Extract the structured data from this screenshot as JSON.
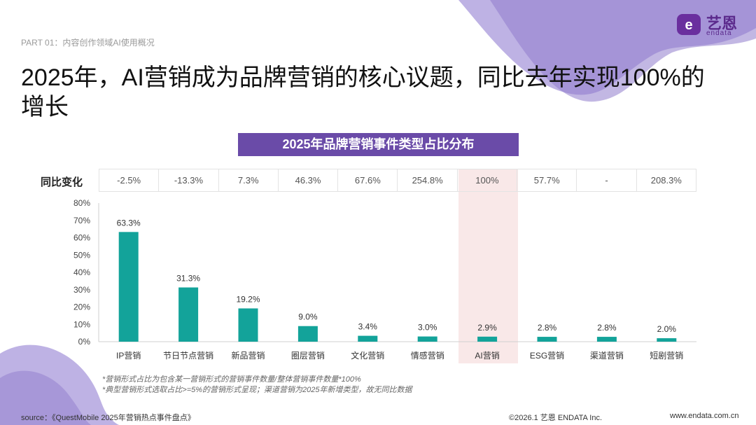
{
  "header": {
    "section_tag": "PART 01：内容创作领域AI使用概况",
    "logo_cn": "艺恩",
    "logo_en": "endata"
  },
  "title": "2025年，AI营销成为品牌营销的核心议题，同比去年实现100%的增长",
  "yoy": {
    "label": "同比变化",
    "values": [
      "-2.5%",
      "-13.3%",
      "7.3%",
      "46.3%",
      "67.6%",
      "254.8%",
      "100%",
      "57.7%",
      "-",
      "208.3%"
    ]
  },
  "chart_data": {
    "type": "bar",
    "title": "2025年品牌营销事件类型占比分布",
    "categories": [
      "IP营销",
      "节日节点营销",
      "新品营销",
      "圈层营销",
      "文化营销",
      "情感营销",
      "AI营销",
      "ESG营销",
      "渠道营销",
      "短剧营销"
    ],
    "values": [
      63.3,
      31.3,
      19.2,
      9.0,
      3.4,
      3.0,
      2.9,
      2.8,
      2.8,
      2.0
    ],
    "value_labels": [
      "63.3%",
      "31.3%",
      "19.2%",
      "9.0%",
      "3.4%",
      "3.0%",
      "2.9%",
      "2.8%",
      "2.8%",
      "2.0%"
    ],
    "ylim": [
      0,
      80
    ],
    "yticks": [
      "0%",
      "10%",
      "20%",
      "30%",
      "40%",
      "50%",
      "60%",
      "70%",
      "80%"
    ],
    "highlight_category": "AI营销",
    "grid": false,
    "bar_color": "#13a39a"
  },
  "footnotes": [
    "*营销形式占比为包含某一营销形式的营销事件数量/整体营销事件数量*100%",
    "*典型营销形式选取占比>=5%的营销形式呈现；渠道营销为2025年新增类型，故无同比数据"
  ],
  "footer": {
    "source": "source：《QuestMobile 2025年营销热点事件盘点》",
    "copyright": "©2026.1  艺恩 ENDATA Inc.",
    "website": "www.endata.com.cn"
  },
  "colors": {
    "accent": "#6a4ba8",
    "bar": "#13a39a",
    "highlight": "#f4d6d6",
    "decoration": "#a99ad8"
  }
}
